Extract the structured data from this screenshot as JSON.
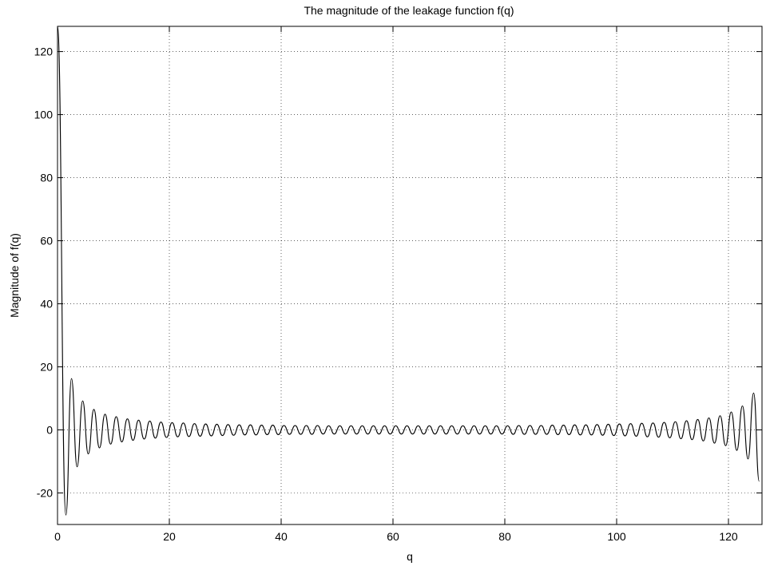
{
  "chart_data": {
    "type": "line",
    "title": "The magnitude of the leakage function f(q)",
    "x_label": "q",
    "y_label": "Magnitude of f(q)",
    "x": [
      0,
      1.5,
      2.5,
      3.5,
      4.5,
      5.5,
      6.5,
      7.5,
      8.5,
      9.5,
      10.5,
      11.5,
      12.5,
      13.5,
      14.5,
      15.5,
      16.5,
      17.5,
      18.5,
      19.5,
      20.5,
      21.5,
      22.5,
      23.5,
      24.5,
      25.5,
      26.5,
      27.5,
      28.5,
      29.5,
      30.5,
      31.5,
      32.5,
      33.5,
      34.5,
      35.5,
      36.5,
      37.5,
      38.5,
      39.5,
      40.5,
      41.5,
      42.5,
      43.5,
      44.5,
      45.5,
      46.5,
      47.5,
      48.5,
      49.5,
      50.5,
      51.5,
      52.5,
      53.5,
      54.5,
      55.5,
      56.5,
      57.5,
      58.5,
      59.5,
      60.5,
      61.5,
      62.5,
      63.5,
      64.5,
      65.5,
      66.5,
      67.5,
      68.5,
      69.5,
      70.5,
      71.5,
      72.5,
      73.5,
      74.5,
      75.5,
      76.5,
      77.5,
      78.5,
      79.5,
      80.5,
      81.5,
      82.5,
      83.5,
      84.5,
      85.5,
      86.5,
      87.5,
      88.5,
      89.5,
      90.5,
      91.5,
      92.5,
      93.5,
      94.5,
      95.5,
      96.5,
      97.5,
      98.5,
      99.5,
      100.5,
      101.5,
      102.5,
      103.5,
      104.5,
      105.5,
      106.5,
      107.5,
      108.5,
      109.5,
      110.5,
      111.5,
      112.5,
      113.5,
      114.5,
      115.5,
      116.5,
      117.5,
      118.5,
      119.5,
      120.5,
      121.5,
      122.5,
      123.5,
      124.5,
      125.5
    ],
    "series": [
      {
        "name": "f(q)",
        "color": "#000000",
        "values": [
          128,
          -27.0,
          16.3,
          -11.7,
          9.2,
          -7.6,
          6.5,
          -5.7,
          5.0,
          -4.5,
          4.2,
          -3.8,
          3.5,
          -3.3,
          3.1,
          -2.9,
          2.8,
          -2.6,
          2.5,
          -2.4,
          2.3,
          -2.2,
          2.2,
          -2.1,
          2.0,
          -2.0,
          1.9,
          -1.9,
          1.8,
          -1.8,
          1.7,
          -1.7,
          1.6,
          -1.6,
          1.6,
          -1.6,
          1.5,
          -1.5,
          1.5,
          -1.5,
          1.4,
          -1.4,
          1.4,
          -1.4,
          1.4,
          -1.4,
          1.4,
          -1.3,
          1.3,
          -1.3,
          1.3,
          -1.3,
          1.3,
          -1.3,
          1.3,
          -1.3,
          1.3,
          -1.3,
          1.3,
          -1.3,
          1.3,
          -1.3,
          1.3,
          -1.3,
          1.3,
          -1.3,
          1.3,
          -1.3,
          1.3,
          -1.3,
          1.3,
          -1.3,
          1.3,
          -1.3,
          1.3,
          -1.3,
          1.3,
          -1.3,
          1.3,
          -1.3,
          1.3,
          -1.4,
          1.4,
          -1.4,
          1.4,
          -1.4,
          1.4,
          -1.4,
          1.5,
          -1.5,
          1.5,
          -1.5,
          1.6,
          -1.6,
          1.6,
          -1.6,
          1.7,
          -1.7,
          1.8,
          -1.8,
          1.9,
          -1.9,
          2.0,
          -2.0,
          2.1,
          -2.2,
          2.2,
          -2.3,
          2.4,
          -2.5,
          2.6,
          -2.8,
          2.9,
          -3.1,
          3.3,
          -3.5,
          3.8,
          -4.2,
          4.5,
          -5.0,
          5.7,
          -6.5,
          7.6,
          -9.2,
          11.7,
          -16.3
        ]
      }
    ],
    "xlim": [
      0,
      126
    ],
    "ylim": [
      -30,
      128
    ],
    "xticks": [
      0,
      20,
      40,
      60,
      80,
      100,
      120
    ],
    "yticks": [
      -20,
      0,
      20,
      40,
      60,
      80,
      100,
      120
    ],
    "grid": true
  }
}
